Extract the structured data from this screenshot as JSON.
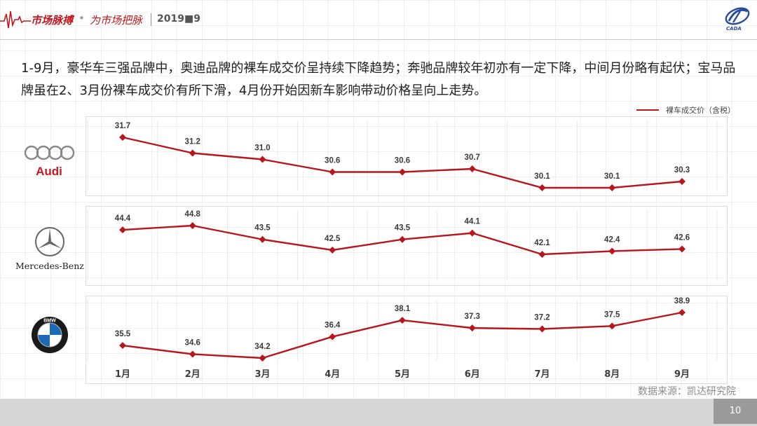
{
  "header": {
    "brand": "市场脉搏",
    "separator": "•",
    "slogan": "为市场把脉",
    "date": "2019■9",
    "logo_text": "CADA"
  },
  "description": "1-9月，豪华车三强品牌中，奥迪品牌的裸车成交价呈持续下降趋势；奔驰品牌较年初亦有一定下降，中间月份略有起伏；宝马品牌虽在2、3月份裸车成交价有所下滑，4月份开始因新车影响带动价格呈向上走势。",
  "legend_label": "裸车成交价（含税）",
  "brands": {
    "audi": "Audi",
    "mercedes": "Mercedes-Benz",
    "bmw": "BMW"
  },
  "source": "数据来源：凯达研究院",
  "page_number": "10",
  "colors": {
    "series": "#b7161c",
    "brand_red": "#c0161b",
    "footer": "#d6d6d6",
    "page_box": "#9b9b9b"
  },
  "chart_data": {
    "type": "line",
    "categories": [
      "1月",
      "2月",
      "3月",
      "4月",
      "5月",
      "6月",
      "7月",
      "8月",
      "9月"
    ],
    "series": [
      {
        "name": "Audi",
        "values": [
          31.7,
          31.2,
          31.0,
          30.6,
          30.6,
          30.7,
          30.1,
          30.1,
          30.3
        ]
      },
      {
        "name": "Mercedes-Benz",
        "values": [
          44.4,
          44.8,
          43.5,
          42.5,
          43.5,
          44.1,
          42.1,
          42.4,
          42.6
        ]
      },
      {
        "name": "BMW",
        "values": [
          35.5,
          34.6,
          34.2,
          36.4,
          38.1,
          37.3,
          37.2,
          37.5,
          38.9
        ]
      }
    ],
    "legend": "裸车成交价（含税）",
    "grid": true,
    "legend_position": "top-right"
  }
}
